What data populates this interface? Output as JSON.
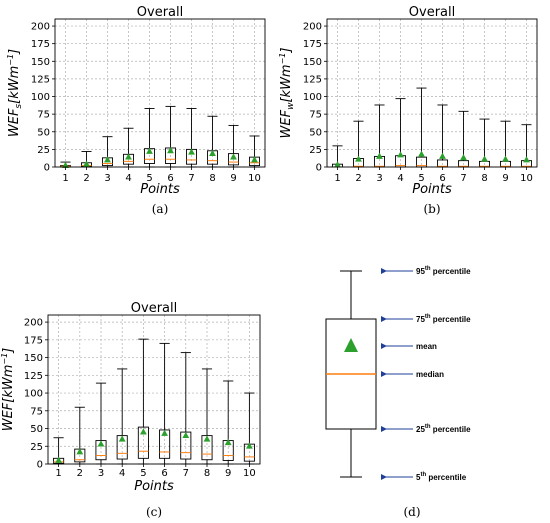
{
  "chart_data": [
    {
      "type": "box",
      "panel": "(a)",
      "title": "Overall",
      "xlabel": "Points",
      "ylabel": {
        "base": "WEF",
        "sub": "s",
        "unit": "[kWm",
        "exp": "−1",
        "close": "]"
      },
      "ylim": [
        0,
        210
      ],
      "yticks": [
        0,
        25,
        50,
        75,
        100,
        125,
        150,
        175,
        200
      ],
      "categories": [
        "1",
        "2",
        "3",
        "4",
        "5",
        "6",
        "7",
        "8",
        "9",
        "10"
      ],
      "grid": true,
      "boxes": [
        {
          "p5": 0,
          "q1": 0,
          "median": 1,
          "q3": 2,
          "p95": 7,
          "mean": 2
        },
        {
          "p5": 0,
          "q1": 1,
          "median": 2,
          "q3": 6,
          "p95": 22,
          "mean": 4
        },
        {
          "p5": 0,
          "q1": 2,
          "median": 5,
          "q3": 13,
          "p95": 43,
          "mean": 10
        },
        {
          "p5": 0,
          "q1": 4,
          "median": 8,
          "q3": 18,
          "p95": 55,
          "mean": 14
        },
        {
          "p5": 0,
          "q1": 5,
          "median": 11,
          "q3": 26,
          "p95": 83,
          "mean": 22
        },
        {
          "p5": 0,
          "q1": 5,
          "median": 11,
          "q3": 27,
          "p95": 86,
          "mean": 23
        },
        {
          "p5": 0,
          "q1": 4,
          "median": 10,
          "q3": 25,
          "p95": 83,
          "mean": 21
        },
        {
          "p5": 0,
          "q1": 4,
          "median": 9,
          "q3": 23,
          "p95": 72,
          "mean": 19
        },
        {
          "p5": 0,
          "q1": 3,
          "median": 7,
          "q3": 19,
          "p95": 59,
          "mean": 14
        },
        {
          "p5": 0,
          "q1": 2,
          "median": 6,
          "q3": 14,
          "p95": 44,
          "mean": 10
        }
      ]
    },
    {
      "type": "box",
      "panel": "(b)",
      "title": "Overall",
      "xlabel": "Points",
      "ylabel": {
        "base": "WEF",
        "sub": "w",
        "unit": "[kWm",
        "exp": "−1",
        "close": "]"
      },
      "ylim": [
        0,
        210
      ],
      "yticks": [
        0,
        25,
        50,
        75,
        100,
        125,
        150,
        175,
        200
      ],
      "categories": [
        "1",
        "2",
        "3",
        "4",
        "5",
        "6",
        "7",
        "8",
        "9",
        "10"
      ],
      "grid": true,
      "boxes": [
        {
          "p5": 0,
          "q1": 0,
          "median": 0,
          "q3": 4,
          "p95": 30,
          "mean": 3
        },
        {
          "p5": 0,
          "q1": 0,
          "median": 1,
          "q3": 12,
          "p95": 65,
          "mean": 11
        },
        {
          "p5": 0,
          "q1": 0,
          "median": 1,
          "q3": 15,
          "p95": 88,
          "mean": 15
        },
        {
          "p5": 0,
          "q1": 0,
          "median": 2,
          "q3": 16,
          "p95": 97,
          "mean": 17
        },
        {
          "p5": 0,
          "q1": 0,
          "median": 2,
          "q3": 14,
          "p95": 112,
          "mean": 18
        },
        {
          "p5": 0,
          "q1": 0,
          "median": 1,
          "q3": 10,
          "p95": 88,
          "mean": 15
        },
        {
          "p5": 0,
          "q1": 0,
          "median": 1,
          "q3": 9,
          "p95": 79,
          "mean": 13
        },
        {
          "p5": 0,
          "q1": 0,
          "median": 1,
          "q3": 8,
          "p95": 68,
          "mean": 11
        },
        {
          "p5": 0,
          "q1": 0,
          "median": 1,
          "q3": 8,
          "p95": 65,
          "mean": 11
        },
        {
          "p5": 0,
          "q1": 0,
          "median": 1,
          "q3": 9,
          "p95": 60,
          "mean": 10
        }
      ]
    },
    {
      "type": "box",
      "panel": "(c)",
      "title": "Overall",
      "xlabel": "Points",
      "ylabel": {
        "base": "WEF",
        "sub": "",
        "unit": "[kWm",
        "exp": "−1",
        "close": "]"
      },
      "ylim": [
        0,
        210
      ],
      "yticks": [
        0,
        25,
        50,
        75,
        100,
        125,
        150,
        175,
        200
      ],
      "categories": [
        "1",
        "2",
        "3",
        "4",
        "5",
        "6",
        "7",
        "8",
        "9",
        "10"
      ],
      "grid": true,
      "boxes": [
        {
          "p5": 0,
          "q1": 1,
          "median": 3,
          "q3": 8,
          "p95": 37,
          "mean": 5
        },
        {
          "p5": 0,
          "q1": 3,
          "median": 6,
          "q3": 21,
          "p95": 80,
          "mean": 17
        },
        {
          "p5": 0,
          "q1": 6,
          "median": 12,
          "q3": 33,
          "p95": 114,
          "mean": 28
        },
        {
          "p5": 0,
          "q1": 7,
          "median": 15,
          "q3": 40,
          "p95": 134,
          "mean": 35
        },
        {
          "p5": 0,
          "q1": 8,
          "median": 18,
          "q3": 52,
          "p95": 176,
          "mean": 45
        },
        {
          "p5": 0,
          "q1": 8,
          "median": 17,
          "q3": 48,
          "p95": 170,
          "mean": 43
        },
        {
          "p5": 0,
          "q1": 7,
          "median": 16,
          "q3": 45,
          "p95": 157,
          "mean": 40
        },
        {
          "p5": 0,
          "q1": 6,
          "median": 14,
          "q3": 40,
          "p95": 134,
          "mean": 35
        },
        {
          "p5": 0,
          "q1": 5,
          "median": 12,
          "q3": 33,
          "p95": 117,
          "mean": 30
        },
        {
          "p5": 0,
          "q1": 4,
          "median": 10,
          "q3": 28,
          "p95": 100,
          "mean": 25
        }
      ]
    }
  ],
  "legend": {
    "panel": "(d)",
    "labels": {
      "p95": {
        "num": "95",
        "sup": "th",
        "text": " percentile"
      },
      "q3": {
        "num": "75",
        "sup": "th",
        "text": " percentile"
      },
      "mean": {
        "num": "",
        "sup": "",
        "text": "mean"
      },
      "median": {
        "num": "",
        "sup": "",
        "text": "median"
      },
      "q1": {
        "num": "25",
        "sup": "th",
        "text": " percentile"
      },
      "p5": {
        "num": "5",
        "sup": "th",
        "text": " percentile"
      }
    }
  },
  "colors": {
    "median": "#ff7f0e",
    "mean": "#2ca02c",
    "arrow": "#1f3f99",
    "grid": "#b0b0b0",
    "box": "#000000"
  }
}
